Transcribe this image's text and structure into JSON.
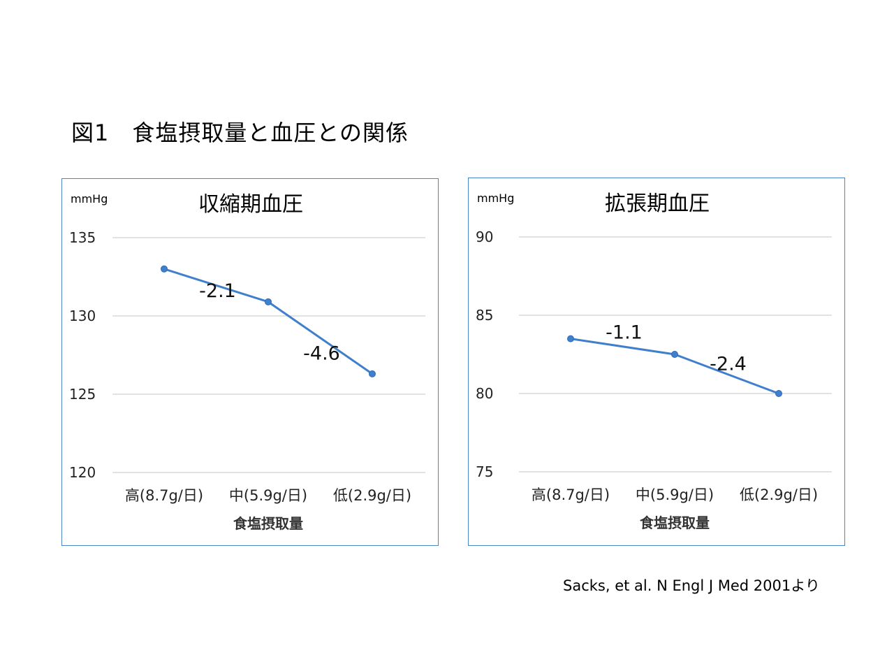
{
  "figure_title": "図1　食塩摂取量と血圧との関係",
  "citation": "Sacks, et al. N Engl J Med 2001より",
  "colors": {
    "line": "#3f7fcc",
    "border": "#4a86c8",
    "grid": "#d9d9d9"
  },
  "chart_data": [
    {
      "type": "line",
      "title": "収縮期血圧",
      "unit": "mmHg",
      "xlabel": "食塩摂取量",
      "categories": [
        "高(8.7g/日)",
        "中(5.9g/日)",
        "低(2.9g/日)"
      ],
      "series": [
        {
          "values": [
            133.0,
            130.9,
            126.3
          ]
        }
      ],
      "ylim": [
        120,
        135
      ],
      "yticks": [
        120,
        125,
        130,
        135
      ],
      "annotations": [
        {
          "text": "-2.1",
          "between": [
            0,
            1
          ],
          "at_y": 131.2
        },
        {
          "text": "-4.6",
          "between": [
            1,
            2
          ],
          "at_y": 127.2
        }
      ],
      "grid": true,
      "legend": "none"
    },
    {
      "type": "line",
      "title": "拡張期血圧",
      "unit": "mmHg",
      "xlabel": "食塩摂取量",
      "categories": [
        "高(8.7g/日)",
        "中(5.9g/日)",
        "低(2.9g/日)"
      ],
      "series": [
        {
          "values": [
            83.5,
            82.5,
            80.0
          ]
        }
      ],
      "ylim": [
        75,
        90
      ],
      "yticks": [
        75,
        80,
        85,
        90
      ],
      "annotations": [
        {
          "text": "-1.1",
          "between": [
            0,
            1
          ],
          "at_y": 83.5
        },
        {
          "text": "-2.4",
          "between": [
            1,
            2
          ],
          "at_y": 81.5
        }
      ],
      "grid": true,
      "legend": "none"
    }
  ]
}
